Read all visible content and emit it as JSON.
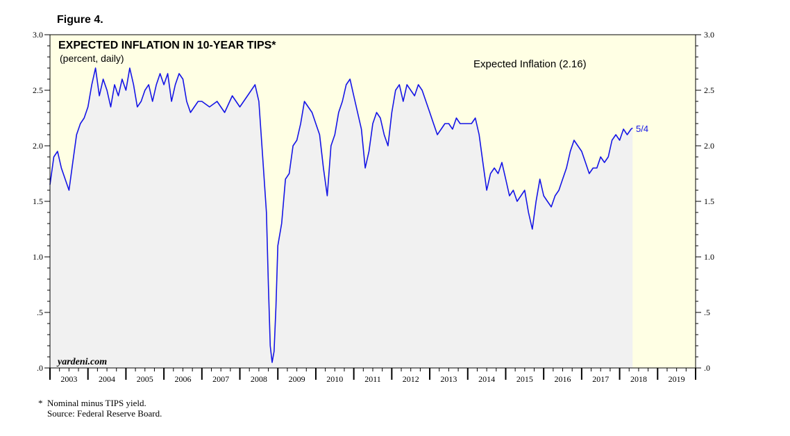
{
  "figure_label": "Figure 4.",
  "chart_data": {
    "type": "line",
    "title": "EXPECTED INFLATION IN 10-YEAR TIPS*",
    "subtitle": "(percent, daily)",
    "legend_text": "Expected Inflation (2.16)",
    "end_label": "5/4",
    "watermark": "yardeni.com",
    "ylim": [
      0,
      3.0
    ],
    "y_ticks": [
      {
        "value": 0,
        "label": ".0"
      },
      {
        "value": 0.5,
        "label": ".5"
      },
      {
        "value": 1.0,
        "label": "1.0"
      },
      {
        "value": 1.5,
        "label": "1.5"
      },
      {
        "value": 2.0,
        "label": "2.0"
      },
      {
        "value": 2.5,
        "label": "2.5"
      },
      {
        "value": 3.0,
        "label": "3.0"
      }
    ],
    "xlim": [
      2003.0,
      2020.0
    ],
    "x_year_labels": [
      "2003",
      "2004",
      "2005",
      "2006",
      "2007",
      "2008",
      "2009",
      "2010",
      "2011",
      "2012",
      "2013",
      "2014",
      "2015",
      "2016",
      "2017",
      "2018",
      "2019"
    ],
    "grid": false,
    "colors": {
      "line": "#1414e6",
      "plot_bg": "#ffffe4",
      "fill": "#f1f1f1"
    },
    "series": [
      {
        "x": [
          2003.0,
          2003.1,
          2003.2,
          2003.3,
          2003.4,
          2003.5,
          2003.6,
          2003.7,
          2003.8,
          2003.9,
          2004.0,
          2004.1,
          2004.2,
          2004.3,
          2004.4,
          2004.5,
          2004.6,
          2004.7,
          2004.8,
          2004.9,
          2005.0,
          2005.1,
          2005.2,
          2005.3,
          2005.4,
          2005.5,
          2005.6,
          2005.7,
          2005.8,
          2005.9,
          2006.0,
          2006.1,
          2006.2,
          2006.3,
          2006.4,
          2006.5,
          2006.6,
          2006.7,
          2006.8,
          2006.9,
          2007.0,
          2007.2,
          2007.4,
          2007.6,
          2007.8,
          2008.0,
          2008.2,
          2008.4,
          2008.5,
          2008.6,
          2008.7,
          2008.75,
          2008.8,
          2008.85,
          2008.9,
          2008.95,
          2009.0,
          2009.1,
          2009.2,
          2009.3,
          2009.4,
          2009.5,
          2009.6,
          2009.7,
          2009.8,
          2009.9,
          2010.0,
          2010.1,
          2010.2,
          2010.3,
          2010.4,
          2010.5,
          2010.6,
          2010.7,
          2010.8,
          2010.9,
          2011.0,
          2011.1,
          2011.2,
          2011.3,
          2011.4,
          2011.5,
          2011.6,
          2011.7,
          2011.8,
          2011.9,
          2012.0,
          2012.1,
          2012.2,
          2012.3,
          2012.4,
          2012.5,
          2012.6,
          2012.7,
          2012.8,
          2012.9,
          2013.0,
          2013.1,
          2013.2,
          2013.3,
          2013.4,
          2013.5,
          2013.6,
          2013.7,
          2013.8,
          2013.9,
          2014.0,
          2014.1,
          2014.2,
          2014.3,
          2014.4,
          2014.5,
          2014.6,
          2014.7,
          2014.8,
          2014.9,
          2015.0,
          2015.1,
          2015.2,
          2015.3,
          2015.4,
          2015.5,
          2015.6,
          2015.7,
          2015.8,
          2015.9,
          2016.0,
          2016.1,
          2016.2,
          2016.3,
          2016.4,
          2016.5,
          2016.6,
          2016.7,
          2016.8,
          2016.9,
          2017.0,
          2017.1,
          2017.2,
          2017.3,
          2017.4,
          2017.5,
          2017.6,
          2017.7,
          2017.8,
          2017.9,
          2018.0,
          2018.1,
          2018.2,
          2018.3,
          2018.34
        ],
        "values": [
          1.65,
          1.9,
          1.95,
          1.8,
          1.7,
          1.6,
          1.85,
          2.1,
          2.2,
          2.25,
          2.35,
          2.55,
          2.7,
          2.45,
          2.6,
          2.5,
          2.35,
          2.55,
          2.45,
          2.6,
          2.5,
          2.7,
          2.55,
          2.35,
          2.4,
          2.5,
          2.55,
          2.4,
          2.55,
          2.65,
          2.55,
          2.65,
          2.4,
          2.55,
          2.65,
          2.6,
          2.4,
          2.3,
          2.35,
          2.4,
          2.4,
          2.35,
          2.4,
          2.3,
          2.45,
          2.35,
          2.45,
          2.55,
          2.4,
          1.9,
          1.4,
          0.75,
          0.2,
          0.05,
          0.15,
          0.55,
          1.1,
          1.3,
          1.7,
          1.75,
          2.0,
          2.05,
          2.2,
          2.4,
          2.35,
          2.3,
          2.2,
          2.1,
          1.8,
          1.55,
          2.0,
          2.1,
          2.3,
          2.4,
          2.55,
          2.6,
          2.45,
          2.3,
          2.15,
          1.8,
          1.95,
          2.2,
          2.3,
          2.25,
          2.1,
          2.0,
          2.3,
          2.5,
          2.55,
          2.4,
          2.55,
          2.5,
          2.45,
          2.55,
          2.5,
          2.4,
          2.3,
          2.2,
          2.1,
          2.15,
          2.2,
          2.2,
          2.15,
          2.25,
          2.2,
          2.2,
          2.2,
          2.2,
          2.25,
          2.1,
          1.85,
          1.6,
          1.75,
          1.8,
          1.75,
          1.85,
          1.7,
          1.55,
          1.6,
          1.5,
          1.55,
          1.6,
          1.4,
          1.25,
          1.5,
          1.7,
          1.55,
          1.5,
          1.45,
          1.55,
          1.6,
          1.7,
          1.8,
          1.95,
          2.05,
          2.0,
          1.95,
          1.85,
          1.75,
          1.8,
          1.8,
          1.9,
          1.85,
          1.9,
          2.05,
          2.1,
          2.05,
          2.15,
          2.1,
          2.15,
          2.16
        ]
      }
    ]
  },
  "footnote": {
    "marker": "*",
    "line1": "Nominal minus TIPS yield.",
    "line2": "Source: Federal Reserve Board."
  }
}
